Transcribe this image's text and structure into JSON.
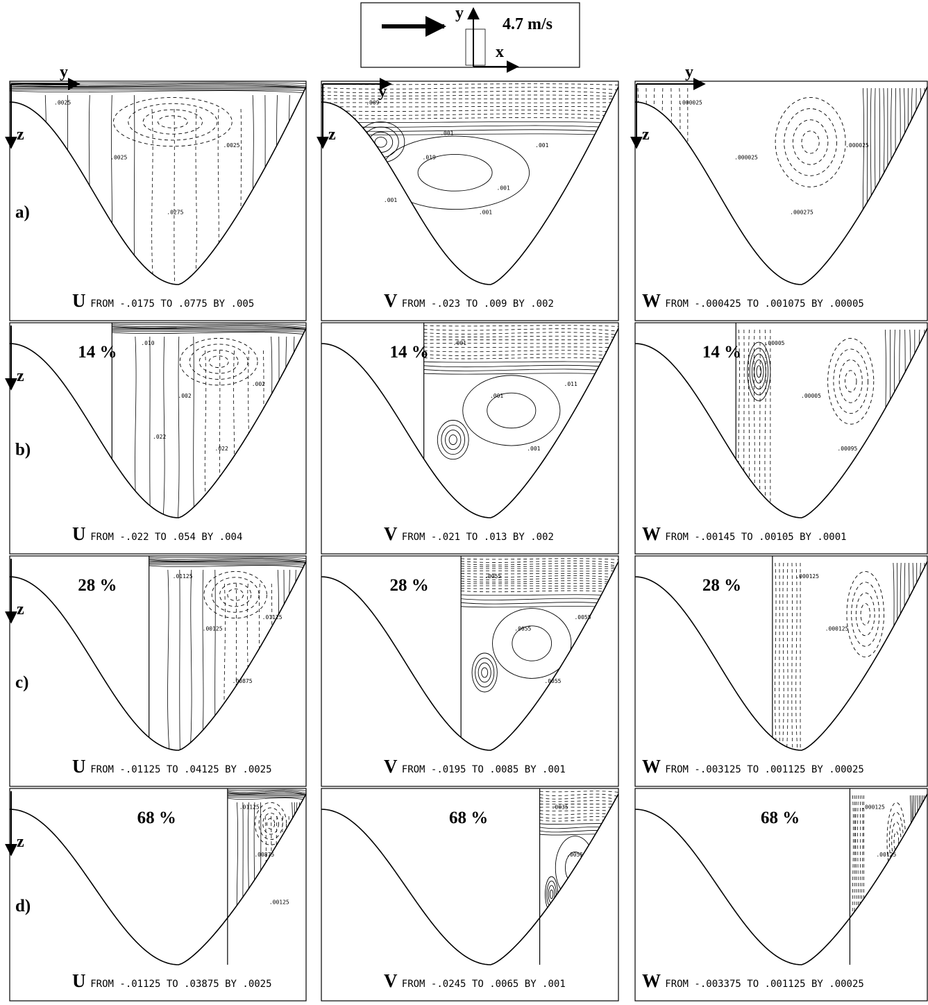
{
  "legend": {
    "speed": "4.7 m/s",
    "axis_y": "y",
    "axis_x": "x"
  },
  "axis": {
    "y": "y",
    "z": "z"
  },
  "rows": [
    {
      "label": "a)",
      "percent": "",
      "panels": [
        {
          "var": "U",
          "range": "FROM -.0175 TO .0775 BY .005",
          "tags": [
            ".0025",
            ".0025",
            ".0275",
            ".0025"
          ]
        },
        {
          "var": "V",
          "range": "FROM -.023 TO .009 BY .002",
          "tags": [
            ".009",
            ".019",
            ".001",
            ".001",
            ".001",
            ".001",
            ".001"
          ]
        },
        {
          "var": "W",
          "range": "FROM -.000425 TO .001075 BY .00005",
          "tags": [
            ".000025",
            ".000025",
            ".000275",
            ".000025"
          ]
        }
      ]
    },
    {
      "label": "b)",
      "percent": "14 %",
      "panels": [
        {
          "var": "U",
          "range": "FROM -.022 TO .054 BY .004",
          "tags": [
            ".010",
            ".002",
            ".022",
            ".002",
            ".022"
          ]
        },
        {
          "var": "V",
          "range": "FROM -.021 TO .013 BY .002",
          "tags": [
            ".001",
            ".001",
            ".001",
            ".011"
          ]
        },
        {
          "var": "W",
          "range": "FROM -.00145 TO .00105 BY .0001",
          "tags": [
            ".00005",
            ".00005",
            ".00095"
          ]
        }
      ]
    },
    {
      "label": "c)",
      "percent": "28 %",
      "panels": [
        {
          "var": "U",
          "range": "FROM -.01125 TO .04125 BY .0025",
          "tags": [
            ".01125",
            ".00125",
            ".00875",
            ".01125"
          ]
        },
        {
          "var": "V",
          "range": "FROM -.0195 TO .0085 BY .001",
          "tags": [
            ".0055",
            ".0055",
            ".0055",
            ".0055"
          ]
        },
        {
          "var": "W",
          "range": "FROM -.003125 TO .001125 BY .00025",
          "tags": [
            ".000125",
            ".000125"
          ]
        }
      ]
    },
    {
      "label": "d)",
      "percent": "68 %",
      "panels": [
        {
          "var": "U",
          "range": "FROM -.01125 TO .03875 BY .0025",
          "tags": [
            ".01125",
            ".00875",
            ".00125"
          ]
        },
        {
          "var": "V",
          "range": "FROM -.0245 TO .0065 BY .001",
          "tags": [
            ".0035",
            ".0055"
          ]
        },
        {
          "var": "W",
          "range": "FROM -.003375 TO .001125 BY .00025",
          "tags": [
            ".000125",
            ".00125"
          ]
        }
      ]
    }
  ]
}
